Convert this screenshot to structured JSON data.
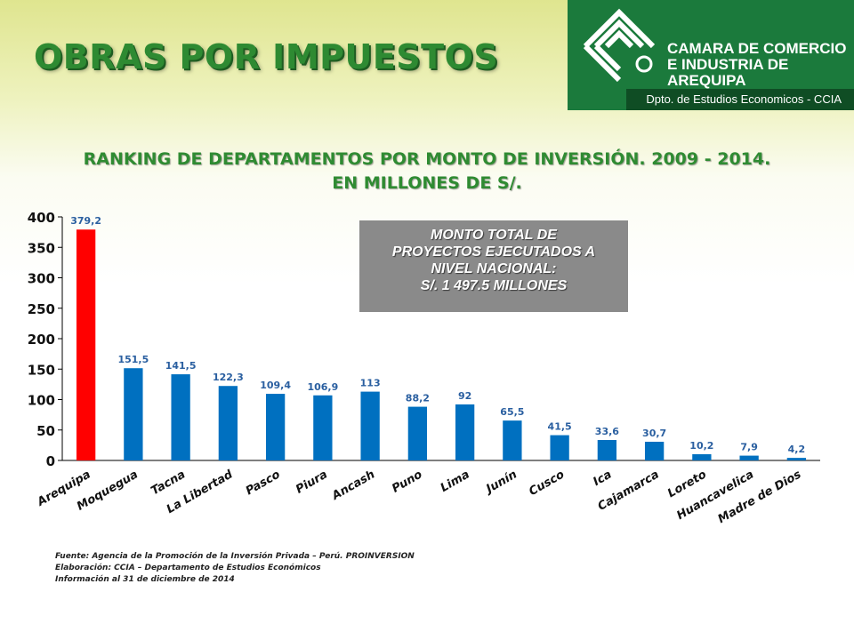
{
  "header": {
    "title": "OBRAS POR IMPUESTOS"
  },
  "brand": {
    "name_lines": [
      "CAMARA DE COMERCIO",
      "E INDUSTRIA DE",
      "AREQUIPA"
    ],
    "department": "Dpto. de Estudios Economicos - CCIA",
    "logo_icon": "ccia-logo-icon",
    "color": "#1b7a3c"
  },
  "callout": {
    "lines": [
      "MONTO TOTAL DE",
      "PROYECTOS EJECUTADOS A",
      "NIVEL NACIONAL:",
      "S/. 1 497.5 MILLONES"
    ],
    "background": "#8a8a8a"
  },
  "footnotes": [
    "Fuente: Agencia de la Promoción de la Inversión Privada – Perú. PROINVERSION",
    "Elaboración: CCIA – Departamento de Estudios Económicos",
    "Información al 31 de diciembre de 2014"
  ],
  "chart_data": {
    "type": "bar",
    "title_lines": [
      "RANKING DE DEPARTAMENTOS POR MONTO DE INVERSIÓN. 2009 - 2014.",
      "EN MILLONES DE S/."
    ],
    "categories": [
      "Arequipa",
      "Moquegua",
      "Tacna",
      "La Libertad",
      "Pasco",
      "Piura",
      "Ancash",
      "Puno",
      "Lima",
      "Junín",
      "Cusco",
      "Ica",
      "Cajamarca",
      "Loreto",
      "Huancavelica",
      "Madre de Dios"
    ],
    "values": [
      379.2,
      151.5,
      141.5,
      122.3,
      109.4,
      106.9,
      113,
      88.2,
      92,
      65.5,
      41.5,
      33.6,
      30.7,
      10.2,
      7.9,
      4.2
    ],
    "value_labels": [
      "379,2",
      "151,5",
      "141,5",
      "122,3",
      "109,4",
      "106,9",
      "113",
      "88,2",
      "92",
      "65,5",
      "41,5",
      "33,6",
      "30,7",
      "10,2",
      "7,9",
      "4,2"
    ],
    "yticks": [
      0,
      50,
      100,
      150,
      200,
      250,
      300,
      350,
      400
    ],
    "ylim": [
      0,
      400
    ],
    "xlabel": "",
    "ylabel": "",
    "grid": false,
    "highlight_index": 0,
    "colors": {
      "highlight": "#ff0000",
      "bar": "#0070c0",
      "value_label": "#2a5fa0",
      "axis": "#000000"
    }
  }
}
